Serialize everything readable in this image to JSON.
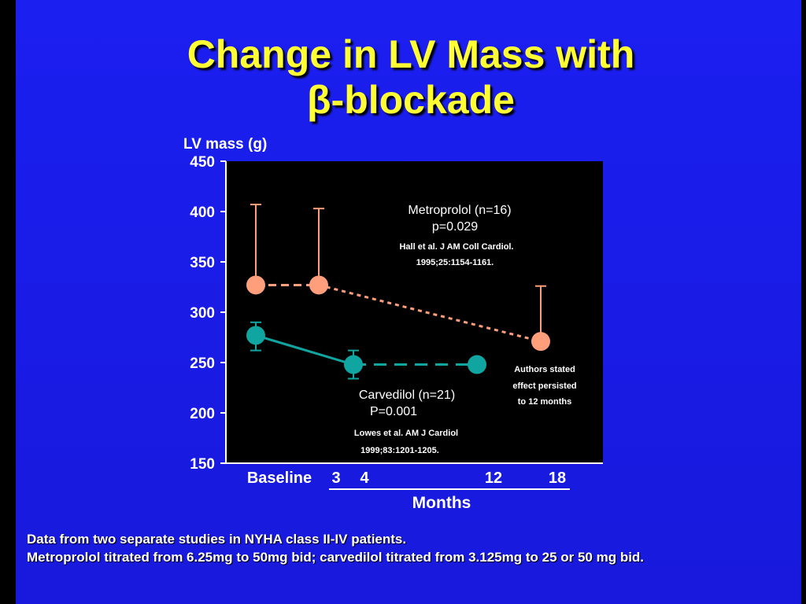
{
  "slide": {
    "title_line1": "Change in LV Mass with",
    "title_line2": "β-blockade",
    "footer_line1": "Data from two separate studies in NYHA class II-IV patients.",
    "footer_line2": "Metroprolol titrated  from 6.25mg to 50mg bid;  carvedilol titrated  from 3.125mg to 25 or 50 mg bid."
  },
  "chart_data": {
    "type": "line",
    "ylabel": "LV mass (g)",
    "xlabel": "Months",
    "ylim": [
      150,
      450
    ],
    "yticks": [
      150,
      200,
      250,
      300,
      350,
      400,
      450
    ],
    "xticks": [
      {
        "label": "Baseline",
        "x": 0
      },
      {
        "label": "3",
        "x": 3
      },
      {
        "label": "4",
        "x": 4
      },
      {
        "label": "12",
        "x": 12
      },
      {
        "label": "18",
        "x": 18
      }
    ],
    "series": [
      {
        "name": "Metroprolol",
        "color": "#ff9e7a",
        "points": [
          {
            "x": 0,
            "y": 327,
            "err_up": 407
          },
          {
            "x": 3,
            "y": 327,
            "err_up": 403
          },
          {
            "x": 18,
            "y": 271,
            "err_up": 326
          }
        ]
      },
      {
        "name": "Carvedilol",
        "color": "#10a5a0",
        "points": [
          {
            "x": 0,
            "y": 277,
            "err_up": 290,
            "err_down": 262
          },
          {
            "x": 4,
            "y": 248,
            "err_up": 262,
            "err_down": 234
          },
          {
            "x": 12,
            "y": 248
          }
        ]
      }
    ],
    "annotations": {
      "metro_line1": "Metroprolol  (n=16)",
      "metro_line2": "p=0.029",
      "metro_line3": "Hall et al. J AM Coll Cardiol.",
      "metro_line4": "1995;25:1154-1161.",
      "carv_line1": "Carvedilol  (n=21)",
      "carv_line2": "P=0.001",
      "carv_line3": "Lowes et al. AM J Cardiol",
      "carv_line4": "1999;83:1201-1205.",
      "note_line1": "Authors stated",
      "note_line2": "effect persisted",
      "note_line3": "to 12 months"
    }
  }
}
